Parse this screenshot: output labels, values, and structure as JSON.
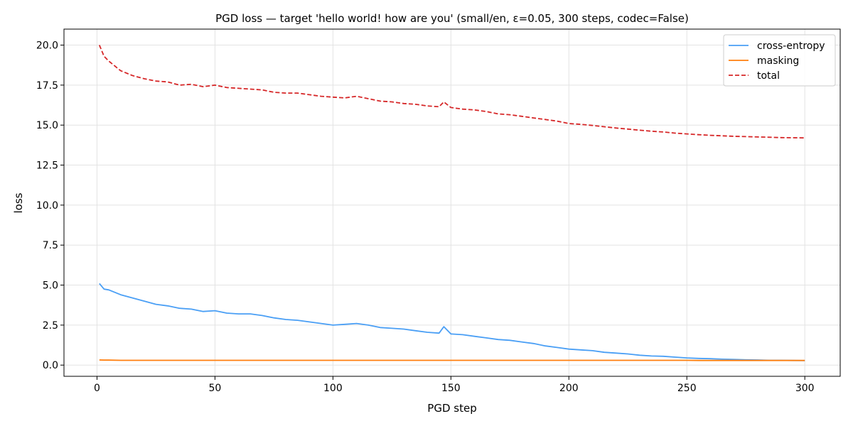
{
  "chart_data": {
    "type": "line",
    "title": "PGD loss — target 'hello world! how are you' (small/en, ε=0.05, 300 steps, codec=False)",
    "xlabel": "PGD step",
    "ylabel": "loss",
    "xlim": [
      -14,
      315
    ],
    "ylim": [
      -0.7,
      21.0
    ],
    "xticks": [
      0,
      50,
      100,
      150,
      200,
      250,
      300
    ],
    "xtick_labels": [
      "0",
      "50",
      "100",
      "150",
      "200",
      "250",
      "300"
    ],
    "yticks": [
      0,
      2.5,
      5,
      7.5,
      10,
      12.5,
      15,
      17.5,
      20
    ],
    "ytick_labels": [
      "0.0",
      "2.5",
      "5.0",
      "7.5",
      "10.0",
      "12.5",
      "15.0",
      "17.5",
      "20.0"
    ],
    "grid": true,
    "legend_position": "top-right",
    "x": [
      1,
      3,
      5,
      10,
      15,
      20,
      25,
      30,
      35,
      40,
      45,
      50,
      55,
      60,
      65,
      70,
      75,
      80,
      85,
      90,
      95,
      100,
      105,
      110,
      115,
      120,
      125,
      130,
      135,
      140,
      145,
      147,
      150,
      155,
      160,
      165,
      170,
      175,
      180,
      185,
      190,
      195,
      200,
      205,
      210,
      215,
      220,
      225,
      230,
      235,
      240,
      245,
      250,
      255,
      260,
      265,
      270,
      275,
      280,
      285,
      290,
      295,
      300
    ],
    "series": [
      {
        "name": "cross-entropy",
        "color": "#4a9ff5",
        "style": "solid",
        "values": [
          5.1,
          4.75,
          4.7,
          4.4,
          4.2,
          4.0,
          3.8,
          3.7,
          3.55,
          3.5,
          3.35,
          3.4,
          3.25,
          3.2,
          3.2,
          3.1,
          2.95,
          2.85,
          2.8,
          2.7,
          2.6,
          2.5,
          2.55,
          2.6,
          2.5,
          2.35,
          2.3,
          2.25,
          2.15,
          2.05,
          2.0,
          2.4,
          1.95,
          1.9,
          1.8,
          1.7,
          1.6,
          1.55,
          1.45,
          1.35,
          1.2,
          1.1,
          1.0,
          0.95,
          0.9,
          0.8,
          0.75,
          0.7,
          0.62,
          0.57,
          0.55,
          0.5,
          0.45,
          0.42,
          0.4,
          0.37,
          0.35,
          0.33,
          0.32,
          0.3,
          0.3,
          0.29,
          0.28
        ]
      },
      {
        "name": "masking",
        "color": "#ff7f0e",
        "style": "solid",
        "values": [
          0.32,
          0.31,
          0.31,
          0.3,
          0.3,
          0.3,
          0.3,
          0.3,
          0.3,
          0.3,
          0.3,
          0.3,
          0.3,
          0.3,
          0.3,
          0.3,
          0.3,
          0.3,
          0.3,
          0.3,
          0.3,
          0.3,
          0.3,
          0.3,
          0.3,
          0.3,
          0.3,
          0.3,
          0.3,
          0.3,
          0.3,
          0.3,
          0.3,
          0.3,
          0.3,
          0.3,
          0.3,
          0.3,
          0.3,
          0.3,
          0.3,
          0.3,
          0.3,
          0.3,
          0.3,
          0.3,
          0.3,
          0.3,
          0.3,
          0.3,
          0.3,
          0.3,
          0.3,
          0.29,
          0.29,
          0.29,
          0.29,
          0.29,
          0.29,
          0.29,
          0.29,
          0.29,
          0.29
        ]
      },
      {
        "name": "total",
        "color": "#d62728",
        "style": "dashed",
        "values": [
          20.0,
          19.3,
          19.0,
          18.4,
          18.1,
          17.9,
          17.75,
          17.7,
          17.5,
          17.55,
          17.4,
          17.5,
          17.35,
          17.3,
          17.25,
          17.2,
          17.05,
          17.0,
          17.0,
          16.9,
          16.8,
          16.75,
          16.7,
          16.8,
          16.65,
          16.5,
          16.45,
          16.35,
          16.3,
          16.2,
          16.15,
          16.45,
          16.1,
          16.0,
          15.95,
          15.85,
          15.7,
          15.65,
          15.55,
          15.45,
          15.35,
          15.25,
          15.1,
          15.05,
          14.98,
          14.9,
          14.82,
          14.75,
          14.68,
          14.62,
          14.57,
          14.5,
          14.45,
          14.4,
          14.36,
          14.33,
          14.3,
          14.28,
          14.26,
          14.24,
          14.22,
          14.21,
          14.2
        ]
      }
    ]
  }
}
